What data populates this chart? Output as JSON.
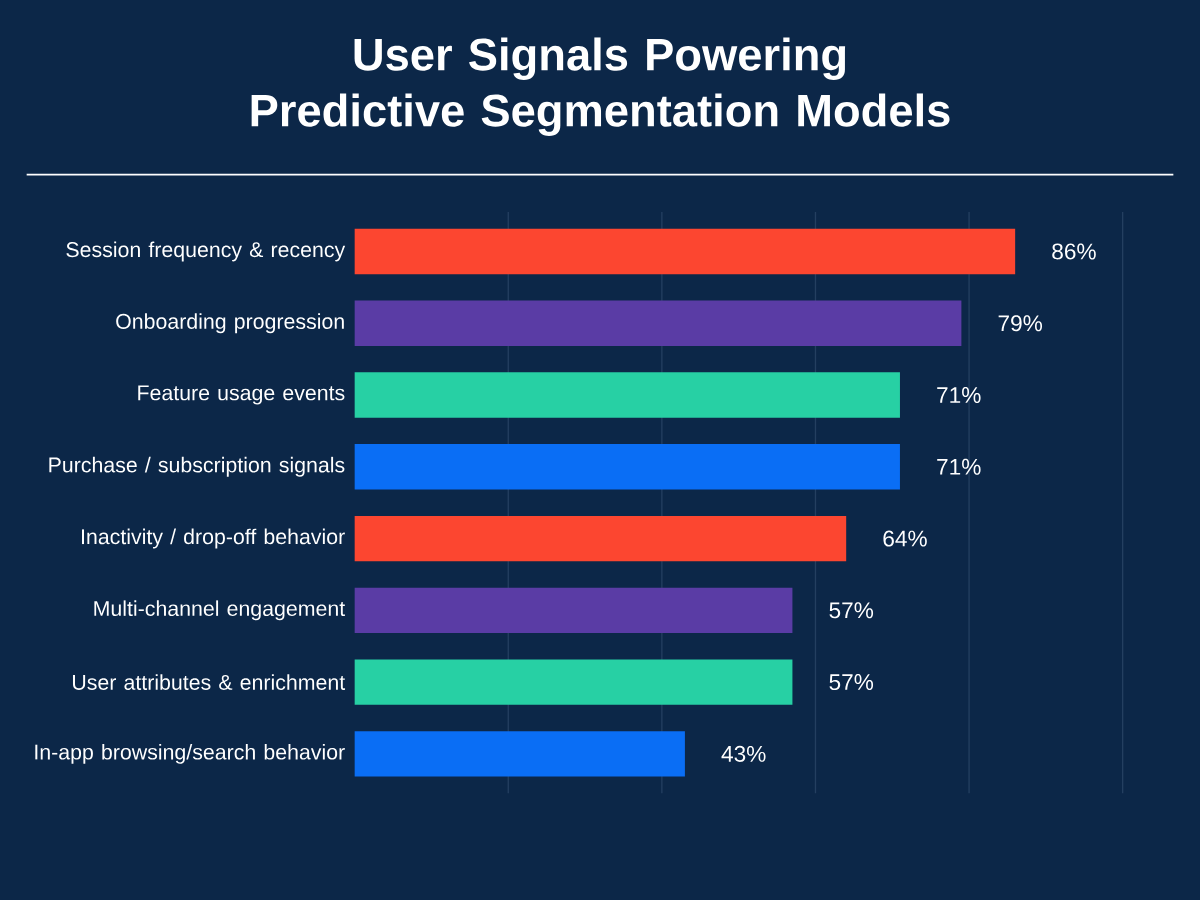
{
  "chart_data": {
    "type": "bar",
    "orientation": "horizontal",
    "title": "User Signals Powering Predictive Segmentation Models",
    "categories": [
      "Session frequency & recency",
      "Onboarding progression",
      "Feature usage events",
      "Purchase / subscription signals",
      "Inactivity / drop-off behavior",
      "Multi-channel engagement",
      "User attributes & enrichment",
      "In-app browsing/search behavior"
    ],
    "values": [
      86,
      79,
      71,
      71,
      64,
      57,
      57,
      43
    ],
    "colors": [
      "#fc4630",
      "#5a3ca5",
      "#27d0a4",
      "#0a6ef5",
      "#fc4630",
      "#5a3ca5",
      "#27d0a4",
      "#0a6ef5"
    ],
    "value_labels": [
      "86%",
      "79%",
      "71%",
      "71%",
      "64%",
      "57%",
      "57%",
      "43%"
    ],
    "xlim": [
      0,
      100
    ],
    "xticks": [
      {
        "value": 20,
        "label": null
      },
      {
        "value": 40,
        "label": null
      },
      {
        "value": 60,
        "label": null
      },
      {
        "value": 80,
        "label": null
      },
      {
        "value": 100,
        "label": null
      }
    ],
    "grid": "x",
    "tick_labels": "y"
  }
}
